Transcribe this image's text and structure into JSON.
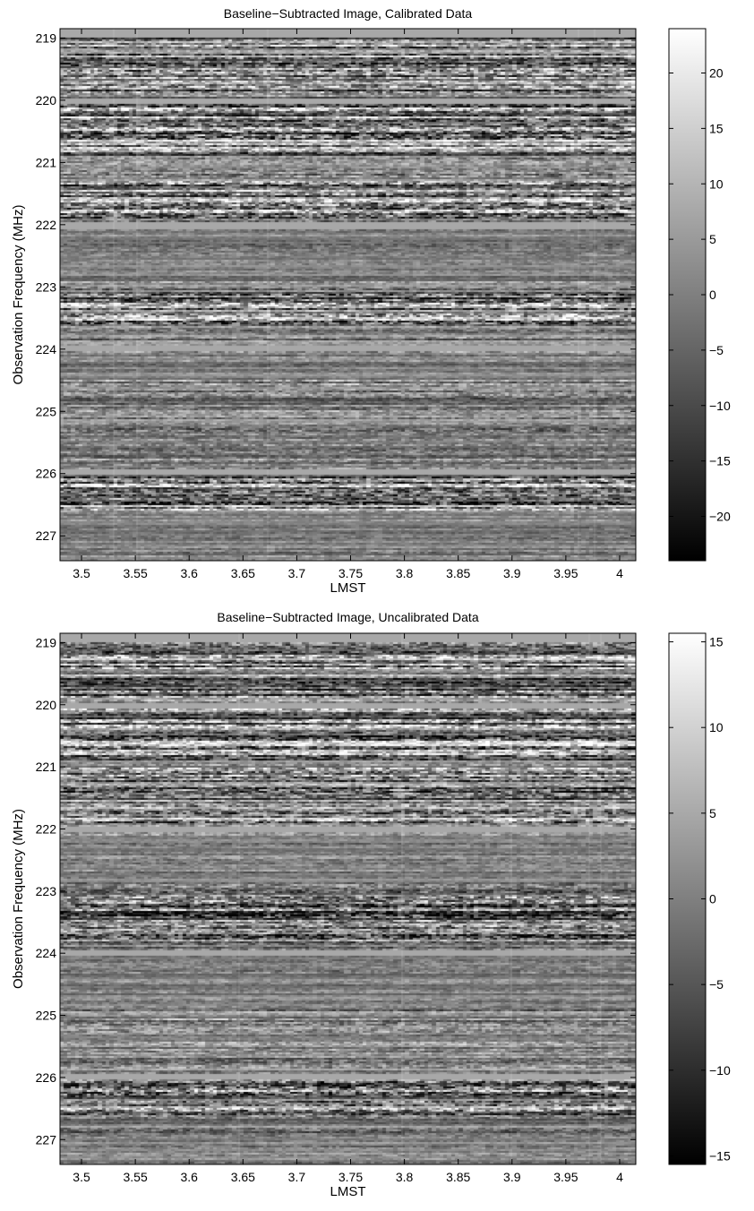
{
  "chart_data": [
    {
      "type": "heatmap",
      "title": "Baseline−Subtracted Image, Calibrated Data",
      "xlabel": "LMST",
      "ylabel": "Observation Frequency (MHz)",
      "xlim": [
        3.48,
        4.015
      ],
      "ylim": [
        218.85,
        227.4
      ],
      "x_ticks": [
        3.5,
        3.55,
        3.6,
        3.65,
        3.7,
        3.75,
        3.8,
        3.85,
        3.9,
        3.95,
        4
      ],
      "x_tick_labels": [
        "3.5",
        "3.55",
        "3.6",
        "3.65",
        "3.7",
        "3.75",
        "3.8",
        "3.85",
        "3.9",
        "3.95",
        "4"
      ],
      "y_ticks": [
        219,
        220,
        221,
        222,
        223,
        224,
        225,
        226,
        227
      ],
      "y_tick_labels": [
        "219",
        "220",
        "221",
        "222",
        "223",
        "224",
        "225",
        "226",
        "227"
      ],
      "colorbar": {
        "range": [
          -24,
          24
        ],
        "ticks": [
          -20,
          -15,
          -10,
          -5,
          0,
          5,
          10,
          15,
          20
        ],
        "tick_labels": [
          "−20",
          "−15",
          "−10",
          "−5",
          "0",
          "5",
          "10",
          "15",
          "20"
        ],
        "colormap": "gray"
      },
      "flagged_bands_mhz": [
        [
          218.85,
          218.98
        ],
        [
          219.97,
          220.06
        ],
        [
          221.97,
          222.06
        ],
        [
          223.95,
          224.04
        ],
        [
          225.93,
          226.03
        ]
      ],
      "variable_bands_mhz": [
        [
          219.0,
          219.9
        ],
        [
          220.06,
          220.9
        ],
        [
          221.3,
          221.9
        ],
        [
          223.1,
          223.6
        ],
        [
          226.05,
          226.6
        ]
      ],
      "quiet_bands_mhz": [
        [
          222.1,
          222.9
        ],
        [
          224.05,
          224.5
        ],
        [
          226.6,
          227.4
        ]
      ],
      "grid": false,
      "legend": "none"
    },
    {
      "type": "heatmap",
      "title": "Baseline−Subtracted Image, Uncalibrated Data",
      "xlabel": "LMST",
      "ylabel": "Observation Frequency (MHz)",
      "xlim": [
        3.48,
        4.015
      ],
      "ylim": [
        218.85,
        227.4
      ],
      "x_ticks": [
        3.5,
        3.55,
        3.6,
        3.65,
        3.7,
        3.75,
        3.8,
        3.85,
        3.9,
        3.95,
        4
      ],
      "x_tick_labels": [
        "3.5",
        "3.55",
        "3.6",
        "3.65",
        "3.7",
        "3.75",
        "3.8",
        "3.85",
        "3.9",
        "3.95",
        "4"
      ],
      "y_ticks": [
        219,
        220,
        221,
        222,
        223,
        224,
        225,
        226,
        227
      ],
      "y_tick_labels": [
        "219",
        "220",
        "221",
        "222",
        "223",
        "224",
        "225",
        "226",
        "227"
      ],
      "colorbar": {
        "range": [
          -15.5,
          15.5
        ],
        "ticks": [
          -15,
          -10,
          -5,
          0,
          5,
          10,
          15
        ],
        "tick_labels": [
          "−15",
          "−10",
          "−5",
          "0",
          "5",
          "10",
          "15"
        ],
        "colormap": "gray"
      },
      "flagged_bands_mhz": [
        [
          218.85,
          218.98
        ],
        [
          219.97,
          220.06
        ],
        [
          221.97,
          222.06
        ],
        [
          223.95,
          224.04
        ],
        [
          225.93,
          226.03
        ]
      ],
      "variable_bands_mhz": [
        [
          219.0,
          219.9
        ],
        [
          220.06,
          220.9
        ],
        [
          221.0,
          221.9
        ],
        [
          223.0,
          223.85
        ],
        [
          226.05,
          226.6
        ]
      ],
      "quiet_bands_mhz": [
        [
          222.1,
          222.9
        ],
        [
          224.05,
          224.9
        ],
        [
          226.9,
          227.4
        ]
      ],
      "grid": false,
      "legend": "none"
    }
  ]
}
